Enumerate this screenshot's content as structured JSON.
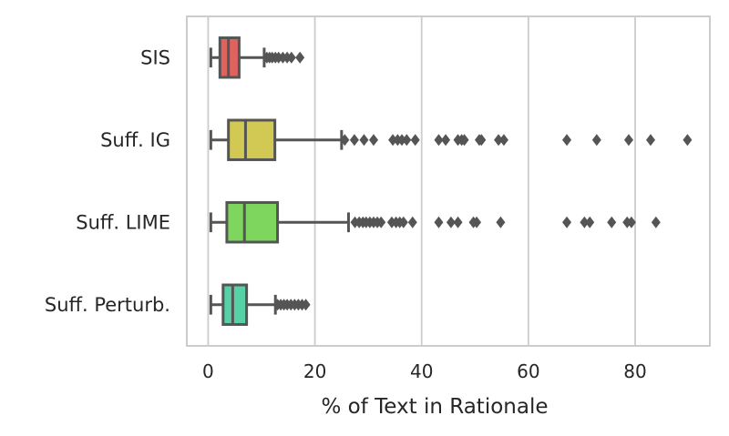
{
  "chart_data": {
    "type": "boxplot",
    "orientation": "horizontal",
    "xlabel": "% of Text in Rationale",
    "ylabel": "",
    "xlim": [
      -4,
      94
    ],
    "xticks": [
      0,
      20,
      40,
      60,
      80
    ],
    "grid": "vertical",
    "categories": [
      "SIS",
      "Suff. IG",
      "Suff. LIME",
      "Suff. Perturb."
    ],
    "series": [
      {
        "color": "#e0625f",
        "box": {
          "whisker_low": 0.5,
          "q1": 2.2,
          "median": 3.8,
          "q3": 5.8,
          "whisker_high": 10.5
        },
        "outliers": [
          11.0,
          11.5,
          12.0,
          12.6,
          13.2,
          14.0,
          14.8,
          15.6,
          17.2
        ]
      },
      {
        "color": "#d2c954",
        "box": {
          "whisker_low": 0.5,
          "q1": 3.8,
          "median": 7.0,
          "q3": 12.5,
          "whisker_high": 25.0
        },
        "outliers": [
          25.6,
          27.4,
          29.2,
          31.0,
          34.6,
          35.5,
          36.3,
          37.2,
          38.8,
          43.2,
          44.5,
          46.8,
          47.5,
          48.0,
          50.8,
          51.2,
          54.4,
          55.4,
          67.2,
          72.8,
          78.8,
          82.9,
          89.8
        ]
      },
      {
        "color": "#7fd65e",
        "box": {
          "whisker_low": 0.5,
          "q1": 3.5,
          "median": 6.8,
          "q3": 13.0,
          "whisker_high": 26.3
        },
        "outliers": [
          27.5,
          28.3,
          29.0,
          29.6,
          30.3,
          31.0,
          31.7,
          32.4,
          34.4,
          35.2,
          35.9,
          36.6,
          38.3,
          43.2,
          45.5,
          46.8,
          49.7,
          50.3,
          54.8,
          67.2,
          70.5,
          71.5,
          75.6,
          78.5,
          79.3,
          83.9
        ]
      },
      {
        "color": "#57d1a6",
        "box": {
          "whisker_low": 0.5,
          "q1": 2.8,
          "median": 4.6,
          "q3": 7.2,
          "whisker_high": 12.6
        },
        "outliers": [
          13.0,
          13.6,
          14.2,
          14.8,
          15.5,
          16.2,
          16.9,
          17.6,
          18.3
        ]
      }
    ]
  }
}
